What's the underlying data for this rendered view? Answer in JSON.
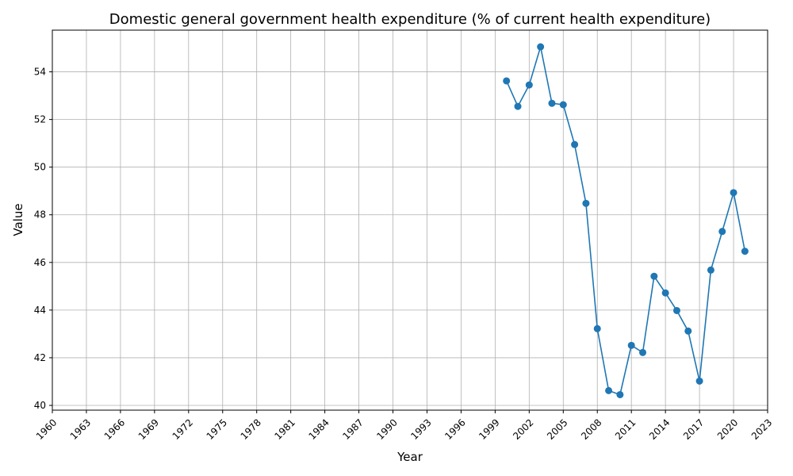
{
  "chart_data": {
    "type": "line",
    "title": "Domestic general government health expenditure (% of current health expenditure)",
    "xlabel": "Year",
    "ylabel": "Value",
    "xlim": [
      1960,
      2023
    ],
    "ylim": [
      39.8,
      55.75
    ],
    "x_ticks": [
      1960,
      1963,
      1966,
      1969,
      1972,
      1975,
      1978,
      1981,
      1984,
      1987,
      1990,
      1993,
      1996,
      1999,
      2002,
      2005,
      2008,
      2011,
      2014,
      2017,
      2020,
      2023
    ],
    "y_ticks": [
      40,
      42,
      44,
      46,
      48,
      50,
      52,
      54
    ],
    "grid": true,
    "color": "#1f77b4",
    "marker": "circle",
    "series": [
      {
        "x": [
          2000,
          2001,
          2002,
          2003,
          2004,
          2005,
          2006,
          2007,
          2008,
          2009,
          2010,
          2011,
          2012,
          2013,
          2014,
          2015,
          2016,
          2017,
          2018,
          2019,
          2020,
          2021
        ],
        "values": [
          53.62,
          52.55,
          53.45,
          55.05,
          52.68,
          52.62,
          50.95,
          48.48,
          43.22,
          40.62,
          40.45,
          42.52,
          42.22,
          45.42,
          44.72,
          43.98,
          43.12,
          41.02,
          45.68,
          47.3,
          48.93,
          46.47
        ]
      }
    ]
  }
}
